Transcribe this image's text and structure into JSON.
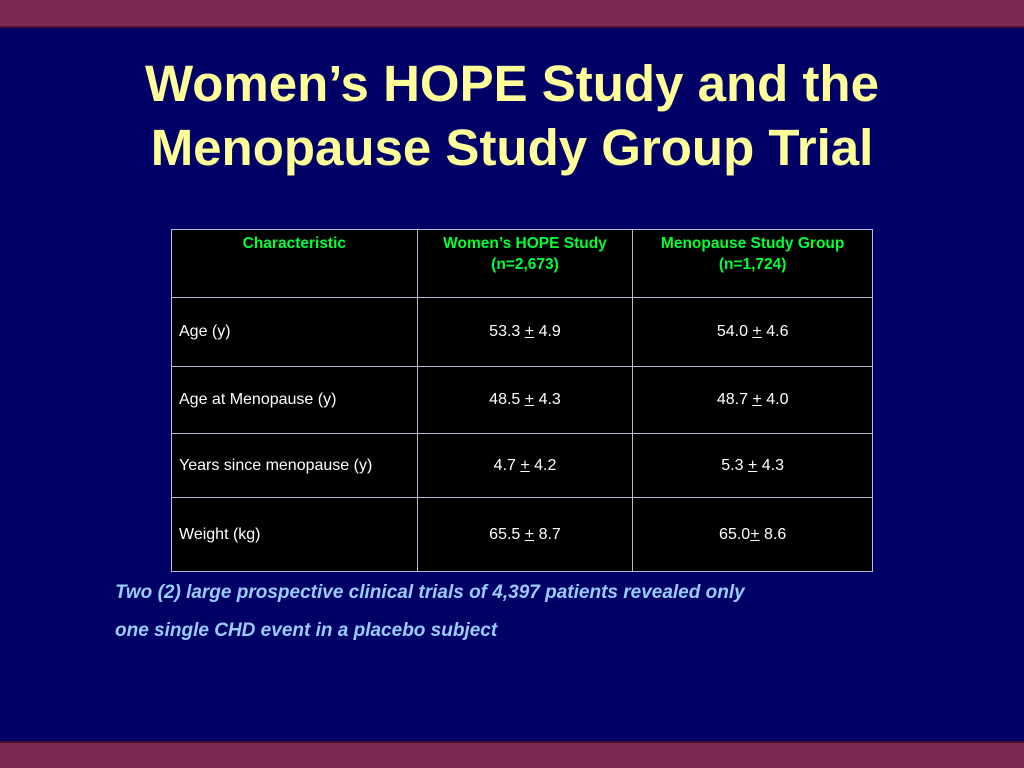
{
  "title": {
    "line1": "Women’s HOPE Study and the",
    "line2": "Menopause Study Group Trial"
  },
  "table": {
    "headers": [
      {
        "line1": "Characteristic",
        "line2": ""
      },
      {
        "line1": "Women’s HOPE Study",
        "line2": "(n=2,673)"
      },
      {
        "line1": "Menopause Study Group",
        "line2": "(n=1,724)"
      }
    ],
    "rows": [
      {
        "label": "Age (y)",
        "hope": {
          "mean": "53.3",
          "pm": "+",
          "sd": "4.9"
        },
        "msg": {
          "mean": "54.0",
          "pm": "+",
          "sd": "4.6"
        }
      },
      {
        "label": "Age at Menopause (y)",
        "hope": {
          "mean": "48.5",
          "pm": "+",
          "sd": "4.3"
        },
        "msg": {
          "mean": "48.7",
          "pm": "+",
          "sd": "4.0"
        }
      },
      {
        "label": "Years since menopause (y)",
        "hope": {
          "mean": "4.7",
          "pm": "+",
          "sd": "4.2"
        },
        "msg": {
          "mean": "5.3",
          "pm": "+",
          "sd": "4.3"
        }
      },
      {
        "label": "Weight (kg)",
        "hope": {
          "mean": "65.5",
          "pm": "+",
          "sd": "8.7"
        },
        "msg": {
          "mean": "65.0",
          "pm": "+",
          "sd": "8.6"
        }
      }
    ]
  },
  "note": {
    "line1": "Two (2) large prospective clinical trials of 4,397 patients revealed only",
    "line2": "one single CHD event in a placebo  subject"
  },
  "colors": {
    "background": "#000066",
    "band": "#7a2a50",
    "title": "#ffff99",
    "header_text": "#00ff33",
    "note_text": "#99ccff"
  }
}
